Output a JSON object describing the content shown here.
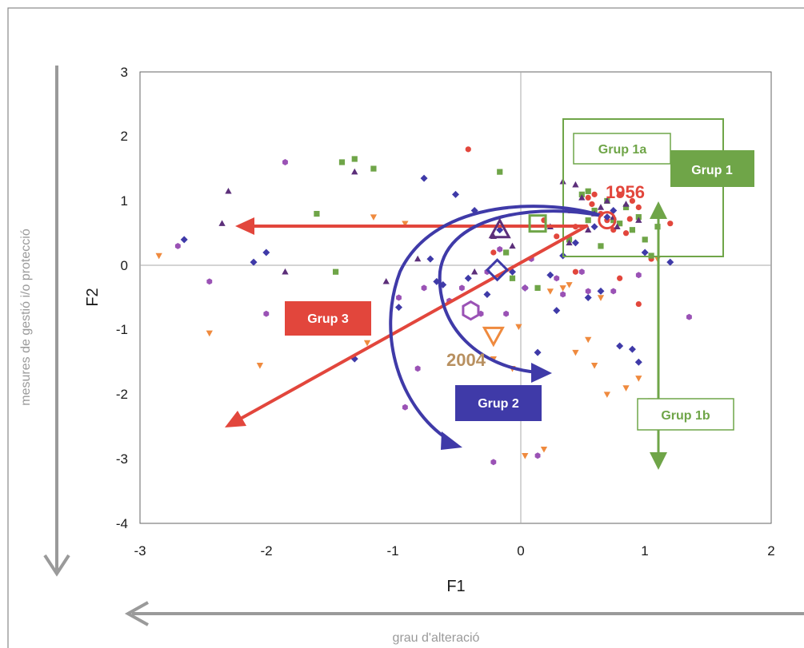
{
  "chart_data": {
    "type": "scatter",
    "xlabel": "F1",
    "ylabel": "F2",
    "xlim": [
      -3,
      2
    ],
    "ylim": [
      -4,
      3
    ],
    "x_ticks": [
      "-3",
      "-2",
      "-1",
      "0",
      "1",
      "2"
    ],
    "y_ticks": [
      "3",
      "2",
      "1",
      "0",
      "-1",
      "-2",
      "-3",
      "-4"
    ],
    "grid": false,
    "zero_lines": true,
    "side_labels": {
      "vertical": "mesures de gestió i/o protecció",
      "horizontal": "grau d'alteració"
    },
    "groups": {
      "grup1": "Grup 1",
      "grup1a": "Grup 1a",
      "grup1b": "Grup 1b",
      "grup2": "Grup 2",
      "grup3": "Grup 3"
    },
    "years": {
      "start": "1956",
      "end": "2004"
    },
    "colors": {
      "red": "#e2463c",
      "green": "#6fa548",
      "blue": "#3f3aa8",
      "purple": "#9a52b5",
      "orange": "#ef8a3e",
      "tan": "#b89060",
      "gray": "#9a9a9a"
    },
    "series": [
      {
        "marker": "circle",
        "color": "#e2463c",
        "x": [
          -0.4,
          0.55,
          0.8,
          0.9,
          0.95,
          1.1,
          1.2,
          0.2,
          0.45,
          0.65,
          0.85,
          0.75,
          0.3,
          0.58,
          -0.2,
          0.95,
          0.8,
          0.45,
          1.05,
          0.7,
          0.4,
          0.6,
          0.88
        ],
        "y": [
          1.8,
          1.05,
          1.1,
          1.0,
          0.9,
          0.8,
          0.65,
          0.7,
          0.6,
          0.8,
          0.5,
          0.55,
          0.45,
          0.95,
          0.2,
          -0.6,
          -0.2,
          -0.1,
          0.1,
          0.7,
          0.85,
          1.1,
          0.72
        ]
      },
      {
        "marker": "square",
        "color": "#6fa548",
        "x": [
          -1.6,
          -1.45,
          -1.4,
          -1.3,
          -1.15,
          -0.15,
          0.5,
          0.55,
          0.7,
          0.75,
          0.9,
          1.0,
          1.1,
          0.6,
          0.65,
          0.85,
          0.95,
          -0.1,
          0.15,
          0.8,
          1.05,
          -0.05,
          0.55,
          0.4
        ],
        "y": [
          0.8,
          -0.1,
          1.6,
          1.65,
          1.5,
          1.45,
          1.1,
          1.15,
          1.0,
          0.7,
          0.55,
          0.4,
          0.6,
          0.85,
          0.3,
          0.9,
          0.75,
          0.2,
          -0.35,
          0.65,
          0.15,
          -0.2,
          0.7,
          0.4
        ]
      },
      {
        "marker": "diamond",
        "color": "#3f3aa8",
        "x": [
          -2.65,
          -2.1,
          -2.0,
          -1.3,
          -0.95,
          -0.75,
          -0.7,
          -0.6,
          -0.65,
          -0.5,
          -0.35,
          -0.25,
          -0.15,
          -0.05,
          0.05,
          0.15,
          0.3,
          0.45,
          0.55,
          0.65,
          0.8,
          0.9,
          0.95,
          1.0,
          1.2,
          0.25,
          0.6,
          -0.4,
          0.7,
          0.75,
          0.35
        ],
        "y": [
          0.4,
          0.05,
          0.2,
          -1.45,
          -0.65,
          1.35,
          0.1,
          -0.3,
          -0.25,
          1.1,
          0.85,
          -0.45,
          0.55,
          -0.1,
          -0.35,
          -1.35,
          -0.7,
          0.35,
          -0.5,
          -0.4,
          -1.25,
          -1.3,
          -1.5,
          0.2,
          0.05,
          -0.15,
          0.6,
          -0.2,
          0.75,
          0.85,
          0.15
        ]
      },
      {
        "marker": "triangle",
        "color": "#5c2f7a",
        "x": [
          -2.3,
          -2.35,
          -1.85,
          -1.3,
          -1.05,
          -0.8,
          -0.05,
          0.35,
          0.45,
          0.55,
          0.6,
          0.7,
          0.75,
          0.85,
          0.95,
          0.25,
          0.65,
          -0.2,
          0.5,
          0.4,
          0.78,
          -0.35
        ],
        "y": [
          1.15,
          0.65,
          -0.1,
          1.45,
          -0.25,
          0.1,
          0.3,
          1.3,
          1.25,
          0.55,
          0.8,
          1.0,
          0.75,
          0.95,
          0.7,
          0.6,
          0.9,
          0.45,
          1.05,
          0.35,
          0.6,
          -0.1
        ]
      },
      {
        "marker": "hexagon",
        "color": "#9a52b5",
        "x": [
          -2.7,
          -2.45,
          -1.85,
          -2.0,
          -0.95,
          -0.8,
          -0.9,
          -0.75,
          -0.55,
          -0.45,
          -0.25,
          -0.1,
          0.05,
          0.15,
          0.35,
          0.55,
          0.75,
          0.95,
          1.35,
          -0.2,
          0.3,
          -0.3,
          -0.15,
          0.5,
          0.1
        ],
        "y": [
          0.3,
          -0.25,
          1.6,
          -0.75,
          -0.5,
          -1.6,
          -2.2,
          -0.35,
          -0.55,
          -0.35,
          -0.1,
          -0.75,
          -0.35,
          -2.95,
          -0.45,
          -0.4,
          -0.4,
          -0.15,
          -0.8,
          -3.05,
          -0.2,
          -0.75,
          0.25,
          -0.1,
          0.1
        ]
      },
      {
        "marker": "triangle-down",
        "color": "#ef8a3e",
        "x": [
          -2.85,
          -2.45,
          -2.05,
          -1.2,
          -1.15,
          -0.9,
          -0.45,
          -0.3,
          -0.05,
          0.05,
          0.2,
          0.35,
          0.45,
          0.6,
          0.7,
          0.85,
          0.95,
          1.05,
          1.1,
          0.25,
          -0.2,
          0.55,
          0.0,
          0.4,
          0.65
        ],
        "y": [
          0.15,
          -1.05,
          -1.55,
          -1.2,
          0.75,
          0.65,
          -2.1,
          -1.95,
          -1.6,
          -2.95,
          -2.85,
          -0.35,
          -1.35,
          -1.55,
          -2.0,
          -1.9,
          -1.75,
          -2.1,
          0.1,
          -0.4,
          -1.45,
          -1.15,
          -0.95,
          -0.3,
          -0.5
        ]
      }
    ],
    "highlights": [
      {
        "marker": "circle",
        "color": "#e2463c",
        "x": 0.7,
        "y": 0.7
      },
      {
        "marker": "square",
        "color": "#6fa548",
        "x": 0.15,
        "y": 0.65
      },
      {
        "marker": "triangle",
        "color": "#5c2f7a",
        "x": -0.15,
        "y": 0.55
      },
      {
        "marker": "diamond",
        "color": "#3f3aa8",
        "x": -0.17,
        "y": -0.07
      },
      {
        "marker": "hexagon",
        "color": "#9a52b5",
        "x": -0.38,
        "y": -0.7
      },
      {
        "marker": "triangle-down",
        "color": "#ef8a3e",
        "x": -0.2,
        "y": -1.08
      }
    ]
  }
}
